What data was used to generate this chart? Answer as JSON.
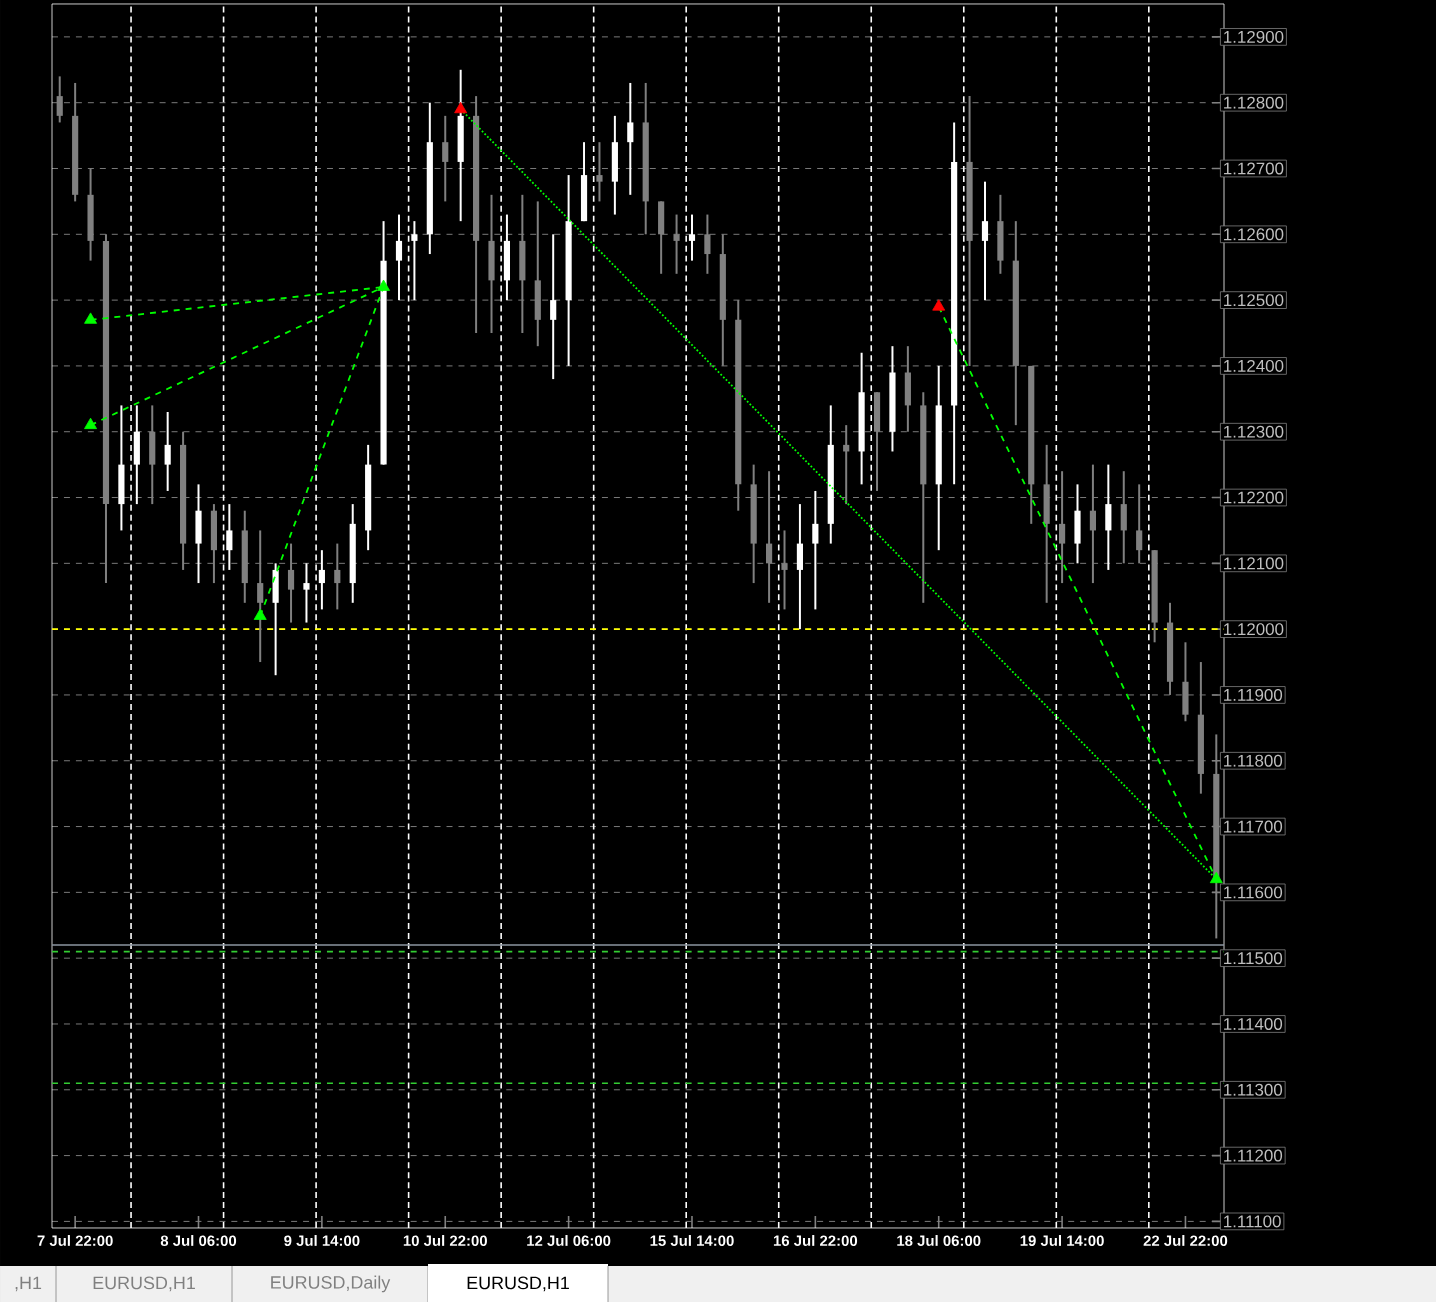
{
  "chart_data": {
    "type": "candlestick",
    "colors": [
      "#808080",
      "#808080",
      "#808080",
      "#808080",
      "#ffffff",
      "#ffffff",
      "#808080",
      "#ffffff",
      "#808080",
      "#ffffff",
      "#808080",
      "#ffffff",
      "#808080",
      "#808080",
      "#ffffff",
      "#808080",
      "#ffffff",
      "#ffffff",
      "#808080",
      "#ffffff",
      "#ffffff",
      "#ffffff",
      "#ffffff",
      "#ffffff",
      "#ffffff",
      "#808080",
      "#ffffff",
      "#808080",
      "#808080",
      "#ffffff",
      "#808080",
      "#808080",
      "#ffffff",
      "#ffffff",
      "#ffffff",
      "#808080",
      "#ffffff",
      "#ffffff",
      "#808080",
      "#808080",
      "#808080",
      "#ffffff",
      "#808080",
      "#808080",
      "#808080",
      "#808080",
      "#808080",
      "#808080",
      "#ffffff",
      "#ffffff",
      "#ffffff",
      "#808080",
      "#ffffff",
      "#808080",
      "#ffffff",
      "#808080",
      "#808080",
      "#ffffff",
      "#ffffff",
      "#808080",
      "#ffffff",
      "#808080",
      "#808080",
      "#808080",
      "#808080",
      "#808080",
      "#ffffff",
      "#808080",
      "#ffffff",
      "#808080",
      "#808080",
      "#808080",
      "#808080",
      "#808080",
      "#808080",
      "#808080"
    ],
    "categories": [
      null,
      "7 Jul 22:00",
      null,
      null,
      null,
      null,
      null,
      null,
      null,
      "8 Jul 06:00",
      null,
      null,
      null,
      null,
      null,
      null,
      null,
      "9 Jul 14:00",
      null,
      null,
      null,
      null,
      null,
      null,
      null,
      "10 Jul 22:00",
      null,
      null,
      null,
      null,
      null,
      null,
      null,
      "12 Jul 06:00",
      null,
      null,
      null,
      null,
      null,
      null,
      null,
      "15 Jul 14:00",
      null,
      null,
      null,
      null,
      null,
      null,
      null,
      "16 Jul 22:00",
      null,
      null,
      null,
      null,
      null,
      null,
      null,
      "18 Jul 06:00",
      null,
      null,
      null,
      null,
      null,
      null,
      null,
      "19 Jul 14:00",
      null,
      null,
      null,
      null,
      null,
      null,
      null,
      "22 Jul 22:00",
      null,
      null
    ],
    "ohlc": [
      [
        1.1281,
        1.1284,
        1.1277,
        1.1278
      ],
      [
        1.1278,
        1.1283,
        1.1265,
        1.1266
      ],
      [
        1.1266,
        1.127,
        1.1256,
        1.1259
      ],
      [
        1.1259,
        1.126,
        1.1207,
        1.1219
      ],
      [
        1.1219,
        1.1234,
        1.1215,
        1.1225
      ],
      [
        1.1225,
        1.1234,
        1.1219,
        1.123
      ],
      [
        1.123,
        1.1234,
        1.1219,
        1.1225
      ],
      [
        1.1225,
        1.1233,
        1.1221,
        1.1228
      ],
      [
        1.1228,
        1.123,
        1.1209,
        1.1213
      ],
      [
        1.1213,
        1.1222,
        1.1207,
        1.1218
      ],
      [
        1.1218,
        1.1219,
        1.1207,
        1.1212
      ],
      [
        1.1212,
        1.1219,
        1.1209,
        1.1215
      ],
      [
        1.1215,
        1.1218,
        1.1204,
        1.1207
      ],
      [
        1.1207,
        1.1215,
        1.1195,
        1.1204
      ],
      [
        1.1204,
        1.121,
        1.1193,
        1.1209
      ],
      [
        1.1209,
        1.1213,
        1.1201,
        1.1206
      ],
      [
        1.1206,
        1.121,
        1.1201,
        1.1207
      ],
      [
        1.1207,
        1.1212,
        1.1203,
        1.1209
      ],
      [
        1.1209,
        1.1213,
        1.1203,
        1.1207
      ],
      [
        1.1207,
        1.1219,
        1.1204,
        1.1216
      ],
      [
        1.1215,
        1.1228,
        1.1212,
        1.1225
      ],
      [
        1.1225,
        1.1262,
        1.1225,
        1.1256
      ],
      [
        1.1256,
        1.1263,
        1.125,
        1.1259
      ],
      [
        1.1259,
        1.1262,
        1.125,
        1.126
      ],
      [
        1.126,
        1.128,
        1.1257,
        1.1274
      ],
      [
        1.1274,
        1.1278,
        1.1265,
        1.1271
      ],
      [
        1.1271,
        1.1285,
        1.1262,
        1.1278
      ],
      [
        1.1278,
        1.1281,
        1.1245,
        1.1259
      ],
      [
        1.1259,
        1.1266,
        1.1245,
        1.1253
      ],
      [
        1.1253,
        1.1263,
        1.125,
        1.1259
      ],
      [
        1.1259,
        1.1266,
        1.1245,
        1.1253
      ],
      [
        1.1253,
        1.1265,
        1.1243,
        1.1247
      ],
      [
        1.1247,
        1.126,
        1.1238,
        1.125
      ],
      [
        1.125,
        1.1269,
        1.124,
        1.1262
      ],
      [
        1.1262,
        1.1274,
        1.1262,
        1.1269
      ],
      [
        1.1269,
        1.1274,
        1.1265,
        1.1268
      ],
      [
        1.1268,
        1.1278,
        1.1263,
        1.1274
      ],
      [
        1.1274,
        1.1283,
        1.1266,
        1.1277
      ],
      [
        1.1277,
        1.1283,
        1.126,
        1.1265
      ],
      [
        1.1265,
        1.1265,
        1.1254,
        1.126
      ],
      [
        1.126,
        1.1263,
        1.1254,
        1.1259
      ],
      [
        1.1259,
        1.1263,
        1.1256,
        1.126
      ],
      [
        1.126,
        1.1263,
        1.1254,
        1.1257
      ],
      [
        1.1257,
        1.126,
        1.124,
        1.1247
      ],
      [
        1.1247,
        1.125,
        1.1218,
        1.1222
      ],
      [
        1.1222,
        1.1225,
        1.1207,
        1.1213
      ],
      [
        1.1213,
        1.1224,
        1.1204,
        1.121
      ],
      [
        1.121,
        1.1215,
        1.1203,
        1.1209
      ],
      [
        1.1209,
        1.1219,
        1.12,
        1.1213
      ],
      [
        1.1213,
        1.1221,
        1.1203,
        1.1216
      ],
      [
        1.1216,
        1.1234,
        1.1213,
        1.1228
      ],
      [
        1.1228,
        1.1231,
        1.1219,
        1.1227
      ],
      [
        1.1227,
        1.1242,
        1.1222,
        1.1236
      ],
      [
        1.1236,
        1.1236,
        1.1221,
        1.123
      ],
      [
        1.123,
        1.1243,
        1.1227,
        1.1239
      ],
      [
        1.1239,
        1.1243,
        1.123,
        1.1234
      ],
      [
        1.1234,
        1.1236,
        1.1204,
        1.1222
      ],
      [
        1.1222,
        1.124,
        1.1212,
        1.1234
      ],
      [
        1.1234,
        1.1277,
        1.1222,
        1.1271
      ],
      [
        1.1271,
        1.1281,
        1.124,
        1.1259
      ],
      [
        1.1259,
        1.1268,
        1.125,
        1.1262
      ],
      [
        1.1262,
        1.1266,
        1.1254,
        1.1256
      ],
      [
        1.1256,
        1.1262,
        1.1231,
        1.124
      ],
      [
        1.124,
        1.124,
        1.1216,
        1.1222
      ],
      [
        1.1222,
        1.1228,
        1.1204,
        1.1216
      ],
      [
        1.1216,
        1.1224,
        1.1207,
        1.1213
      ],
      [
        1.1213,
        1.1222,
        1.121,
        1.1218
      ],
      [
        1.1218,
        1.1225,
        1.1207,
        1.1215
      ],
      [
        1.1215,
        1.1225,
        1.1209,
        1.1219
      ],
      [
        1.1219,
        1.1224,
        1.121,
        1.1215
      ],
      [
        1.1215,
        1.1222,
        1.121,
        1.1212
      ],
      [
        1.1212,
        1.1212,
        1.1198,
        1.1201
      ],
      [
        1.1201,
        1.1204,
        1.119,
        1.1192
      ],
      [
        1.1192,
        1.1198,
        1.1186,
        1.1187
      ],
      [
        1.1187,
        1.1195,
        1.1175,
        1.1178
      ],
      [
        1.1178,
        1.1184,
        1.1153,
        1.1162
      ]
    ],
    "series": [
      {
        "type": "line",
        "color": "#00ff00",
        "line_style": "dashed",
        "marker": "none",
        "values": [
          null,
          null,
          1.1247,
          null,
          null,
          null,
          null,
          null,
          null,
          null,
          null,
          null,
          null,
          null,
          null,
          null,
          null,
          null,
          null,
          null,
          null,
          1.1252,
          null,
          null,
          null,
          null,
          null,
          null,
          null,
          null,
          null,
          null,
          null,
          null,
          null,
          null,
          null,
          null,
          null,
          null,
          null,
          null,
          null,
          null,
          null,
          null,
          null,
          null,
          null,
          null,
          null,
          null,
          null,
          null,
          null,
          null,
          null,
          null,
          null,
          null,
          null,
          null,
          null,
          null,
          null,
          null,
          null,
          null,
          null,
          null,
          null,
          null,
          null,
          null,
          null,
          null
        ]
      },
      {
        "type": "line",
        "color": "#00ff00",
        "line_style": "dashed",
        "marker": "none",
        "values": [
          null,
          null,
          1.1231,
          null,
          null,
          null,
          null,
          null,
          null,
          null,
          null,
          null,
          null,
          null,
          null,
          null,
          null,
          null,
          null,
          null,
          null,
          1.1252,
          null,
          null,
          null,
          null,
          null,
          null,
          null,
          null,
          null,
          null,
          null,
          null,
          null,
          null,
          null,
          null,
          null,
          null,
          null,
          null,
          null,
          null,
          null,
          null,
          null,
          null,
          null,
          null,
          null,
          null,
          null,
          null,
          null,
          null,
          null,
          null,
          null,
          null,
          null,
          null,
          null,
          null,
          null,
          null,
          null,
          null,
          null,
          null,
          null,
          null,
          null,
          null,
          null,
          null
        ]
      },
      {
        "type": "line",
        "color": "#00ff00",
        "line_style": "dashed",
        "marker": "none",
        "values": [
          null,
          null,
          null,
          null,
          null,
          null,
          null,
          null,
          null,
          null,
          null,
          null,
          null,
          1.1202,
          null,
          null,
          null,
          null,
          null,
          null,
          null,
          1.1252,
          null,
          null,
          null,
          null,
          null,
          null,
          null,
          null,
          null,
          null,
          null,
          null,
          null,
          null,
          null,
          null,
          null,
          null,
          null,
          null,
          null,
          null,
          null,
          null,
          null,
          null,
          null,
          null,
          null,
          null,
          null,
          null,
          null,
          null,
          null,
          null,
          null,
          null,
          null,
          null,
          null,
          null,
          null,
          null,
          null,
          null,
          null,
          null,
          null,
          null,
          null,
          null,
          null,
          null
        ]
      },
      {
        "type": "line",
        "color": "#00ff00",
        "line_style": "dotted",
        "marker": "none",
        "values": [
          null,
          null,
          null,
          null,
          null,
          null,
          null,
          null,
          null,
          null,
          null,
          null,
          null,
          null,
          null,
          null,
          null,
          null,
          null,
          null,
          null,
          null,
          null,
          null,
          null,
          null,
          1.1279,
          null,
          null,
          null,
          null,
          null,
          null,
          null,
          null,
          null,
          null,
          null,
          null,
          null,
          null,
          null,
          null,
          null,
          null,
          null,
          null,
          null,
          null,
          null,
          null,
          null,
          null,
          null,
          null,
          null,
          null,
          null,
          null,
          null,
          null,
          null,
          null,
          null,
          null,
          null,
          null,
          null,
          null,
          null,
          null,
          null,
          null,
          null,
          null,
          1.1162
        ]
      },
      {
        "type": "line",
        "color": "#00ff00",
        "line_style": "dashed",
        "marker": "none",
        "values": [
          null,
          null,
          null,
          null,
          null,
          null,
          null,
          null,
          null,
          null,
          null,
          null,
          null,
          null,
          null,
          null,
          null,
          null,
          null,
          null,
          null,
          null,
          null,
          null,
          null,
          null,
          null,
          null,
          null,
          null,
          null,
          null,
          null,
          null,
          null,
          null,
          null,
          null,
          null,
          null,
          null,
          null,
          null,
          null,
          null,
          null,
          null,
          null,
          null,
          null,
          null,
          null,
          null,
          null,
          null,
          null,
          null,
          1.1249,
          null,
          null,
          null,
          null,
          null,
          null,
          null,
          null,
          null,
          null,
          null,
          null,
          null,
          null,
          null,
          null,
          null,
          1.1162
        ]
      },
      {
        "type": "scatter",
        "color": "#00ff00",
        "marker": "triangle",
        "values": [
          null,
          null,
          1.1247,
          null,
          null,
          null,
          null,
          null,
          null,
          null,
          null,
          null,
          null,
          1.1202,
          null,
          null,
          null,
          null,
          null,
          null,
          null,
          1.1252,
          null,
          null,
          null,
          null,
          null,
          null,
          null,
          null,
          null,
          null,
          null,
          null,
          null,
          null,
          null,
          null,
          null,
          null,
          null,
          null,
          null,
          null,
          null,
          null,
          null,
          null,
          null,
          null,
          null,
          null,
          null,
          null,
          null,
          null,
          null,
          null,
          null,
          null,
          null,
          null,
          null,
          null,
          null,
          null,
          null,
          null,
          null,
          null,
          null,
          null,
          null,
          null,
          null,
          1.1162
        ]
      },
      {
        "type": "scatter",
        "color": "#00ff00",
        "marker": "triangle",
        "values": [
          null,
          null,
          1.1231,
          null,
          null,
          null,
          null,
          null,
          null,
          null,
          null,
          null,
          null,
          null,
          null,
          null,
          null,
          null,
          null,
          null,
          null,
          null,
          null,
          null,
          null,
          null,
          null,
          null,
          null,
          null,
          null,
          null,
          null,
          null,
          null,
          null,
          null,
          null,
          null,
          null,
          null,
          null,
          null,
          null,
          null,
          null,
          null,
          null,
          null,
          null,
          null,
          null,
          null,
          null,
          null,
          null,
          null,
          null,
          null,
          null,
          null,
          null,
          null,
          null,
          null,
          null,
          null,
          null,
          null,
          null,
          null,
          null,
          null,
          null,
          null,
          null
        ]
      },
      {
        "type": "scatter",
        "color": "#ff0000",
        "marker": "triangle",
        "values": [
          null,
          null,
          null,
          null,
          null,
          null,
          null,
          null,
          null,
          null,
          null,
          null,
          null,
          null,
          null,
          null,
          null,
          null,
          null,
          null,
          null,
          null,
          null,
          null,
          null,
          null,
          1.1279,
          null,
          null,
          null,
          null,
          null,
          null,
          null,
          null,
          null,
          null,
          null,
          null,
          null,
          null,
          null,
          null,
          null,
          null,
          null,
          null,
          null,
          null,
          null,
          null,
          null,
          null,
          null,
          null,
          null,
          null,
          1.1249,
          null,
          null,
          null,
          null,
          null,
          null,
          null,
          null,
          null,
          null,
          null,
          null,
          null,
          null,
          null,
          null,
          null,
          null
        ]
      }
    ],
    "ylim": [
      1.1109,
      1.1295
    ],
    "yticks": [
      {
        "value": 1.111,
        "label": "1.11100"
      },
      {
        "value": 1.112,
        "label": "1.11200"
      },
      {
        "value": 1.113,
        "label": "1.11300"
      },
      {
        "value": 1.114,
        "label": "1.11400"
      },
      {
        "value": 1.115,
        "label": "1.11500"
      },
      {
        "value": 1.116,
        "label": "1.11600"
      },
      {
        "value": 1.117,
        "label": "1.11700"
      },
      {
        "value": 1.118,
        "label": "1.11800"
      },
      {
        "value": 1.119,
        "label": "1.11900"
      },
      {
        "value": 1.12,
        "label": "1.12000"
      },
      {
        "value": 1.121,
        "label": "1.12100"
      },
      {
        "value": 1.122,
        "label": "1.12200"
      },
      {
        "value": 1.123,
        "label": "1.12300"
      },
      {
        "value": 1.124,
        "label": "1.12400"
      },
      {
        "value": 1.125,
        "label": "1.12500"
      },
      {
        "value": 1.126,
        "label": "1.12600"
      },
      {
        "value": 1.127,
        "label": "1.12700"
      },
      {
        "value": 1.128,
        "label": "1.12800"
      },
      {
        "value": 1.129,
        "label": "1.12900"
      }
    ],
    "ref_lines": [
      {
        "axis": "y",
        "value": 1.12,
        "color": "#ffff00",
        "line_style": "dashed"
      },
      {
        "axis": "y",
        "value": 1.1152,
        "color": "#8c96a0",
        "line_style": "solid"
      },
      {
        "axis": "y",
        "value": 1.1151,
        "color": "#32cd32",
        "line_style": "dashed"
      },
      {
        "axis": "y",
        "value": 1.1131,
        "color": "#32cd32",
        "line_style": "dashed"
      }
    ],
    "grid": true,
    "annotations": [
      ",H1",
      "EURUSD,H1",
      "EURUSD,Daily",
      "EURUSD,H1"
    ]
  }
}
